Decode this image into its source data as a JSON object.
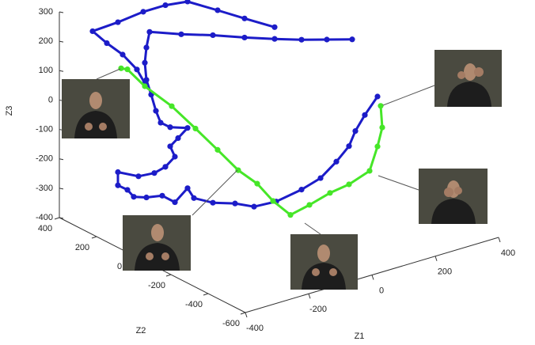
{
  "chart_data": {
    "type": "line3d",
    "xlabel": "Z1",
    "ylabel": "Z2",
    "zlabel": "Z3",
    "xlim": [
      -400,
      400
    ],
    "ylim": [
      -600,
      400
    ],
    "zlim": [
      -400,
      300
    ],
    "xticks": [
      -400,
      -200,
      0,
      200,
      400
    ],
    "yticks": [
      -600,
      -400,
      -200,
      0,
      200,
      400
    ],
    "zticks": [
      -400,
      -300,
      -200,
      -100,
      0,
      100,
      200,
      300
    ],
    "series": [
      {
        "color": "#1c1cc8",
        "x": [
          45,
          -50,
          -135,
          -230,
          -300,
          -370,
          -450,
          -530,
          -485,
          -435,
          -390,
          -365,
          null,
          290,
          210,
          130,
          45,
          -50,
          -150,
          -250,
          -350,
          -360,
          -365,
          -360,
          -345,
          -330,
          -315,
          -285,
          -230,
          -260,
          -285,
          -270,
          -300,
          -335,
          -385,
          -450,
          -450,
          -420,
          -400,
          -360,
          -310,
          -270,
          -230,
          -210,
          -150,
          -80,
          -20,
          50,
          130,
          190,
          240,
          280,
          300,
          330,
          370
        ],
        "y": [
          0,
          0,
          0,
          0,
          0,
          0,
          0,
          0,
          0,
          0,
          0,
          0,
          null,
          0,
          0,
          0,
          0,
          0,
          0,
          0,
          0,
          0,
          0,
          0,
          0,
          0,
          0,
          0,
          0,
          0,
          0,
          0,
          0,
          0,
          0,
          0,
          0,
          0,
          0,
          0,
          0,
          0,
          0,
          0,
          0,
          0,
          0,
          0,
          0,
          0,
          0,
          0,
          0,
          0,
          0
        ],
        "z": [
          235,
          295,
          350,
          410,
          420,
          420,
          410,
          405,
          350,
          295,
          230,
          175,
          null,
          115,
          140,
          165,
          195,
          230,
          270,
          305,
          345,
          295,
          245,
          185,
          130,
          70,
          25,
          0,
          -20,
          -45,
          -65,
          -105,
          -130,
          -140,
          -135,
          -100,
          -145,
          -170,
          -200,
          -215,
          -225,
          -260,
          -225,
          -265,
          -300,
          -325,
          -355,
          -360,
          -345,
          -325,
          -285,
          -245,
          -200,
          -155,
          -105
        ]
      },
      {
        "color": "#46e628",
        "x": [
          -440,
          -420,
          -365,
          -280,
          -205,
          -135,
          -70,
          -10,
          40,
          95,
          155,
          220,
          280,
          345,
          370,
          385,
          380
        ],
        "y": [
          0,
          0,
          0,
          0,
          0,
          0,
          0,
          0,
          0,
          0,
          0,
          0,
          0,
          0,
          0,
          0,
          0
        ],
        "z": [
          250,
          240,
          165,
          70,
          -30,
          -125,
          -215,
          -280,
          -355,
          -420,
          -405,
          -385,
          -375,
          -350,
          -275,
          -215,
          -140
        ]
      }
    ]
  }
}
